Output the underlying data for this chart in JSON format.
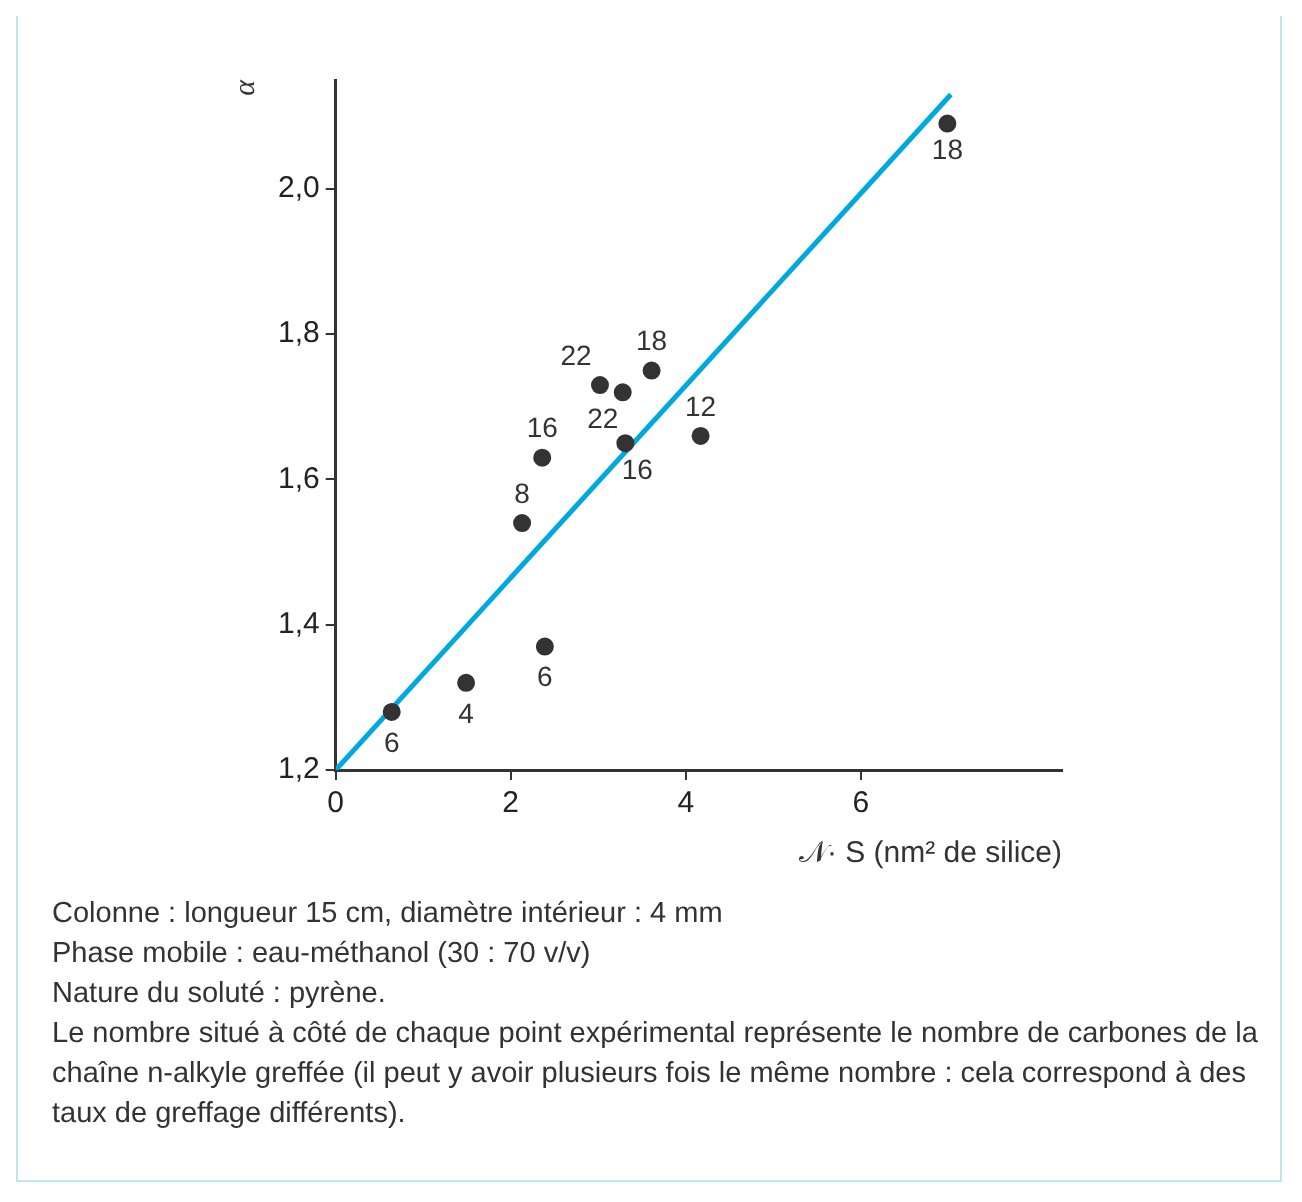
{
  "chart_data": {
    "type": "scatter",
    "xlabel": "𝒩· S (nm² de silice)",
    "ylabel": "α",
    "xlim": [
      0,
      8.3
    ],
    "ylim": [
      1.2,
      2.15
    ],
    "xticks": [
      0,
      2,
      4,
      6
    ],
    "yticks": [
      {
        "value": 1.2,
        "label": "1,2"
      },
      {
        "value": 1.4,
        "label": "1,4"
      },
      {
        "value": 1.6,
        "label": "1,6"
      },
      {
        "value": 1.8,
        "label": "1,8"
      },
      {
        "value": 2.0,
        "label": "2,0"
      }
    ],
    "grid": false,
    "legend": false,
    "marker": "circle",
    "series": [
      {
        "color": "#333333",
        "x": [
          0.64,
          1.49,
          2.39,
          2.13,
          2.36,
          3.02,
          3.28,
          3.61,
          3.31,
          4.17,
          6.99
        ],
        "values": [
          1.28,
          1.32,
          1.37,
          1.54,
          1.63,
          1.73,
          1.72,
          1.75,
          1.65,
          1.66,
          2.09
        ]
      },
      {
        "type": "line",
        "color": "#00a8e0",
        "x": [
          0,
          7.03
        ],
        "values": [
          1.2,
          2.13
        ],
        "marker": "none",
        "line_style": "solid"
      }
    ],
    "annotations": [
      {
        "text": "6",
        "x": 0.64,
        "y": 1.28
      },
      {
        "text": "4",
        "x": 1.49,
        "y": 1.32
      },
      {
        "text": "6",
        "x": 2.39,
        "y": 1.37
      },
      {
        "text": "8",
        "x": 2.13,
        "y": 1.54
      },
      {
        "text": "16",
        "x": 2.36,
        "y": 1.63
      },
      {
        "text": "22",
        "x": 3.02,
        "y": 1.73
      },
      {
        "text": "22",
        "x": 3.28,
        "y": 1.72
      },
      {
        "text": "18",
        "x": 3.61,
        "y": 1.75
      },
      {
        "text": "16",
        "x": 3.31,
        "y": 1.65
      },
      {
        "text": "12",
        "x": 4.17,
        "y": 1.66
      },
      {
        "text": "18",
        "x": 6.99,
        "y": 2.09
      },
      "Colonne : longueur 15 cm, diamètre intérieur : 4 mm",
      "Phase mobile : eau-méthanol (30 : 70 v/v)",
      "Nature du soluté : pyrène.",
      "Le nombre situé à côté de chaque point expérimental représente le nombre de carbones de la chaîne n-alkyle greffée (il peut y avoir plusieurs fois le même nombre : cela correspond à des taux de greffage différents)."
    ]
  }
}
